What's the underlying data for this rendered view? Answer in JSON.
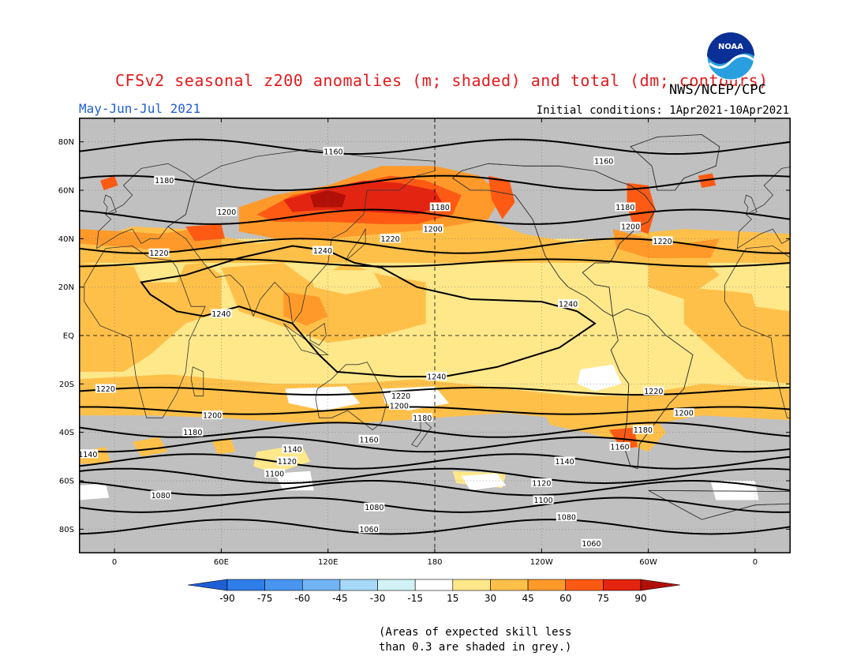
{
  "header": {
    "title": "CFSv2 seasonal z200 anomalies (m; shaded) and total (dm; contours)",
    "agency": "NWS/NCEP/CPC",
    "period": "May-Jun-Jul 2021",
    "initial_conditions": "Initial conditions: 1Apr2021-10Apr2021",
    "logo_text": "NOAA"
  },
  "axes": {
    "lat_ticks": [
      "80N",
      "60N",
      "40N",
      "20N",
      "EQ",
      "20S",
      "40S",
      "60S",
      "80S"
    ],
    "lon_ticks": [
      "0",
      "60E",
      "120E",
      "180",
      "120W",
      "60W",
      "0"
    ]
  },
  "contours": [
    {
      "label": "1160",
      "lat": 78
    },
    {
      "label": "1180",
      "lat": 63
    },
    {
      "label": "1200",
      "lat": 49
    },
    {
      "label": "1220",
      "lat": 37
    },
    {
      "label": "1240",
      "lat": 30
    },
    {
      "label": "1220",
      "lat": -23
    },
    {
      "label": "1200",
      "lat": -31
    },
    {
      "label": "1180",
      "lat": -39
    },
    {
      "label": "1160",
      "lat": -45
    },
    {
      "label": "1140",
      "lat": -52
    },
    {
      "label": "1120",
      "lat": -58
    },
    {
      "label": "1100",
      "lat": -63
    },
    {
      "label": "1080",
      "lat": -70
    },
    {
      "label": "1060",
      "lat": -79
    }
  ],
  "contour_labels": [
    {
      "text": "1160",
      "lon": 123,
      "lat": 76
    },
    {
      "text": "1160",
      "lon": 275,
      "lat": 72
    },
    {
      "text": "1180",
      "lon": 28,
      "lat": 64
    },
    {
      "text": "1180",
      "lon": 183,
      "lat": 53
    },
    {
      "text": "1180",
      "lon": 287,
      "lat": 53
    },
    {
      "text": "1200",
      "lon": 63,
      "lat": 51
    },
    {
      "text": "1200",
      "lon": 179,
      "lat": 44
    },
    {
      "text": "1200",
      "lon": 290,
      "lat": 45
    },
    {
      "text": "1220",
      "lon": 25,
      "lat": 34
    },
    {
      "text": "1220",
      "lon": 155,
      "lat": 40
    },
    {
      "text": "1220",
      "lon": 308,
      "lat": 39
    },
    {
      "text": "1240",
      "lon": 117,
      "lat": 35
    },
    {
      "text": "1240",
      "lon": 255,
      "lat": 13
    },
    {
      "text": "1240",
      "lon": 60,
      "lat": 9
    },
    {
      "text": "1240",
      "lon": 181,
      "lat": -17
    },
    {
      "text": "1220",
      "lon": -5,
      "lat": -22
    },
    {
      "text": "1220",
      "lon": 161,
      "lat": -25
    },
    {
      "text": "1220",
      "lon": 303,
      "lat": -23
    },
    {
      "text": "1200",
      "lon": 160,
      "lat": -29
    },
    {
      "text": "1200",
      "lon": 55,
      "lat": -33
    },
    {
      "text": "1200",
      "lon": 320,
      "lat": -32
    },
    {
      "text": "1180",
      "lon": 173,
      "lat": -34
    },
    {
      "text": "1180",
      "lon": 44,
      "lat": -40
    },
    {
      "text": "1180",
      "lon": 297,
      "lat": -39
    },
    {
      "text": "1160",
      "lon": 143,
      "lat": -43
    },
    {
      "text": "1160",
      "lon": 284,
      "lat": -46
    },
    {
      "text": "1140",
      "lon": -15,
      "lat": -49
    },
    {
      "text": "1140",
      "lon": 100,
      "lat": -47
    },
    {
      "text": "1140",
      "lon": 253,
      "lat": -52
    },
    {
      "text": "1120",
      "lon": 97,
      "lat": -52
    },
    {
      "text": "1120",
      "lon": 240,
      "lat": -61
    },
    {
      "text": "1100",
      "lon": 90,
      "lat": -57
    },
    {
      "text": "1100",
      "lon": 241,
      "lat": -68
    },
    {
      "text": "1080",
      "lon": 26,
      "lat": -66
    },
    {
      "text": "1080",
      "lon": 146,
      "lat": -71
    },
    {
      "text": "1080",
      "lon": 254,
      "lat": -75
    },
    {
      "text": "1060",
      "lon": 143,
      "lat": -80
    },
    {
      "text": "1060",
      "lon": 268,
      "lat": -86
    }
  ],
  "colorbar": {
    "labels": [
      "-90",
      "-75",
      "-60",
      "-45",
      "-30",
      "-15",
      "15",
      "30",
      "45",
      "60",
      "75",
      "90"
    ],
    "colors": [
      "#1e5fd6",
      "#2f7de8",
      "#4896f0",
      "#72b3f4",
      "#a6d8f8",
      "#d2f3f6",
      "#ffffff",
      "#ffe88a",
      "#ffc04a",
      "#ff9a2a",
      "#ff5a14",
      "#e32410",
      "#b01008"
    ]
  },
  "anomaly_colors": {
    "grey": "#c0c0c0",
    "light_yellow": "#ffe88a",
    "yellow_orange": "#ffc04a",
    "orange": "#ff9a2a",
    "red_orange": "#ff5a14",
    "red": "#e32410",
    "dark_red": "#b01008"
  },
  "note": {
    "line1": "(Areas of expected skill less",
    "line2": "than 0.3 are shaded in grey.)"
  }
}
